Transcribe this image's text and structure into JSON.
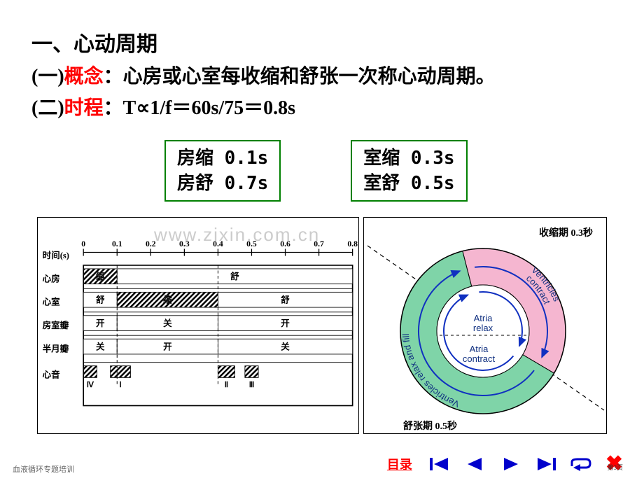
{
  "header": {
    "title": "一、心动周期",
    "line1_prefix": "(一)",
    "line1_red": "概念",
    "line1_rest": "：心房或心室每收缩和舒张一次称心动周期。",
    "line2_prefix": "(二)",
    "line2_red": "时程",
    "line2_rest": "：T∝1/f＝60s/75＝0.8s"
  },
  "boxes": {
    "left": {
      "l1": "房缩 0.1s",
      "l2": "房舒 0.7s",
      "border": "#008000"
    },
    "right": {
      "l1": "室缩 0.3s",
      "l2": "室舒 0.5s",
      "border": "#008000"
    }
  },
  "timing": {
    "axis_label": "时间(s)",
    "ticks": [
      "0",
      "0.1",
      "0.2",
      "0.3",
      "0.4",
      "0.5",
      "0.6",
      "0.7",
      "0.8"
    ],
    "rows": [
      {
        "label": "心房",
        "cells": [
          {
            "w": 0.1,
            "pattern": "hatch",
            "text": "缩"
          },
          {
            "w": 0.7,
            "pattern": "none",
            "text": "舒"
          }
        ]
      },
      {
        "label": "心室",
        "cells": [
          {
            "w": 0.1,
            "pattern": "none",
            "text": "舒"
          },
          {
            "w": 0.3,
            "pattern": "hatch",
            "text": "缩"
          },
          {
            "w": 0.4,
            "pattern": "none",
            "text": "舒"
          }
        ]
      },
      {
        "label": "房室瓣",
        "cells": [
          {
            "w": 0.1,
            "pattern": "none",
            "text": "开"
          },
          {
            "w": 0.3,
            "pattern": "none",
            "text": "关"
          },
          {
            "w": 0.4,
            "pattern": "none",
            "text": "开"
          }
        ]
      },
      {
        "label": "半月瓣",
        "cells": [
          {
            "w": 0.1,
            "pattern": "none",
            "text": "关"
          },
          {
            "w": 0.3,
            "pattern": "none",
            "text": "开"
          },
          {
            "w": 0.4,
            "pattern": "none",
            "text": "关"
          }
        ]
      }
    ],
    "sound_label": "心音",
    "sounds": [
      {
        "x": 0.0,
        "w": 0.04,
        "label": "Ⅳ"
      },
      {
        "x": 0.08,
        "w": 0.06,
        "label": "Ⅰ"
      },
      {
        "x": 0.4,
        "w": 0.05,
        "label": "Ⅱ"
      },
      {
        "x": 0.48,
        "w": 0.04,
        "label": "Ⅲ"
      }
    ],
    "colors": {
      "border": "#000000",
      "hatch": "#000000",
      "bg": "#ffffff",
      "font": "#000000"
    }
  },
  "circle": {
    "top_label": "收缩期 0.3秒",
    "bottom_label": "舒张期 0.5秒",
    "outer_top_text": "Ventricles contract",
    "outer_bottom_text": "Ventricles relax and fill",
    "inner_top_text": "Atria relax",
    "inner_bottom_text": "Atria contract",
    "colors": {
      "contract": "#f5b6d0",
      "relax": "#7fd4a8",
      "arrow": "#1030c0",
      "border": "#000000",
      "center_bg": "#ffffff"
    }
  },
  "watermark": "www.zixin.com.cn",
  "footer": {
    "left_text": "血液循环专题培训",
    "menu_label": "目录",
    "page_num": "第3页",
    "nav_color": "#0000cc",
    "close_color": "#ff0000"
  }
}
